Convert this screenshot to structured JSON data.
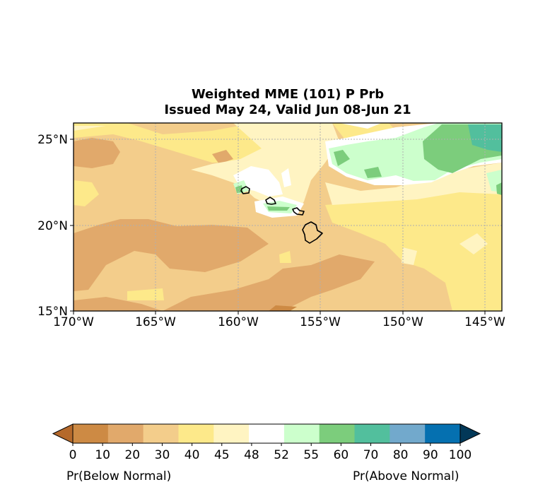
{
  "title": {
    "line1": "Weighted MME (101) P Prb",
    "line2": "Issued May 24, Valid Jun 08-Jun 21"
  },
  "axes": {
    "lon_ticks": [
      "170°W",
      "165°W",
      "160°W",
      "155°W",
      "150°W",
      "145°W"
    ],
    "lat_ticks": [
      "25°N",
      "20°N",
      "15°N"
    ],
    "lon_range": [
      -170,
      -144
    ],
    "lat_range": [
      15,
      26
    ],
    "grid": true
  },
  "colorbar": {
    "levels": [
      "0",
      "10",
      "20",
      "30",
      "40",
      "45",
      "48",
      "52",
      "55",
      "60",
      "70",
      "80",
      "90",
      "100"
    ],
    "colors": [
      "#b5692b",
      "#cd8a44",
      "#e1a96b",
      "#f3cd8b",
      "#fde98a",
      "#fff4c2",
      "#ffffff",
      "#ccffcc",
      "#7ccd7c",
      "#52bf9d",
      "#72a9cc",
      "#0570b0",
      "#023858"
    ],
    "label_left": "Pr(Below Normal)",
    "label_right": "Pr(Above Normal)"
  }
}
